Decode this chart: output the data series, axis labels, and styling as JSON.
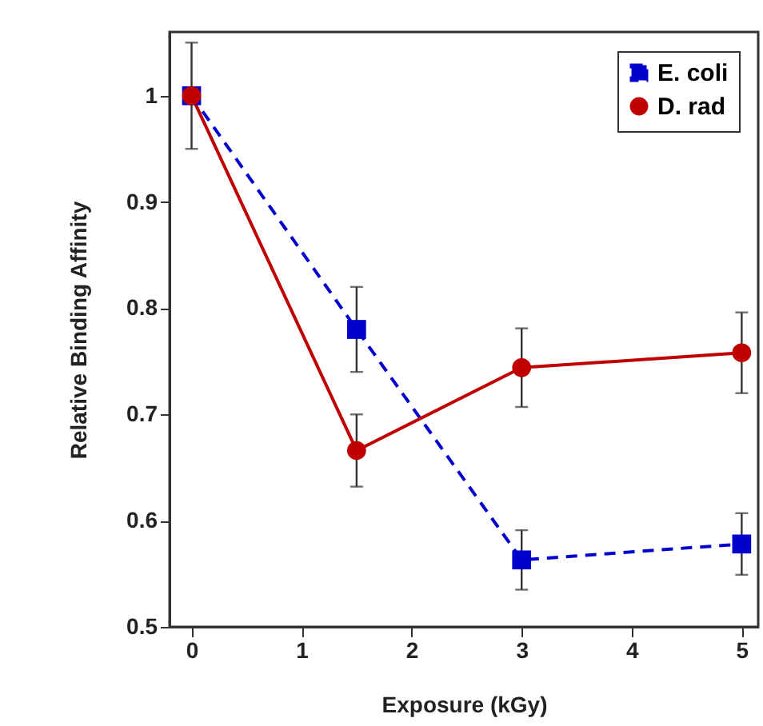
{
  "chart_data": {
    "type": "line",
    "xlabel": "Exposure (kGy)",
    "ylabel": "Relative Binding Affinity",
    "x": [
      0,
      1.5,
      3,
      5
    ],
    "series": [
      {
        "name": "E. coli",
        "color": "#0000cc",
        "values": [
          1.0,
          0.78,
          0.563,
          0.578
        ],
        "errors": [
          0.05,
          0.04,
          0.028,
          0.029
        ],
        "line_style": "dashed",
        "marker": "square"
      },
      {
        "name": "D. rad",
        "color": "#c00000",
        "values": [
          1.0,
          0.666,
          0.744,
          0.758
        ],
        "errors": [
          null,
          0.034,
          0.037,
          0.038
        ],
        "line_style": "solid",
        "marker": "circle"
      }
    ],
    "xlim": [
      -0.2,
      5.15
    ],
    "xticks": [
      0,
      1,
      2,
      3,
      4,
      5
    ],
    "ylim": [
      0.5,
      1.06
    ],
    "yticks": [
      0.5,
      0.6,
      0.7,
      0.8,
      0.9,
      1
    ],
    "grid": false,
    "legend": "top right"
  }
}
